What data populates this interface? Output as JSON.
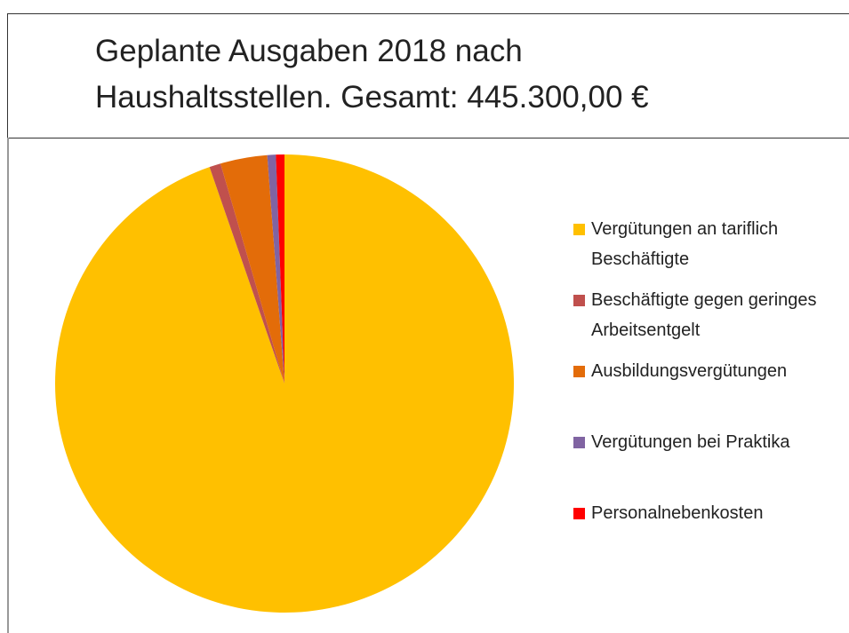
{
  "chart_data": {
    "type": "pie",
    "title": "Geplante Ausgaben 2018 nach Haushaltsstellen. Gesamt: 445.300,00 €",
    "categories": [
      "Vergütungen an tariflich Beschäftigte",
      "Beschäftigte gegen geringes Arbeitsentgelt",
      "Ausbildungsvergütungen",
      "Vergütungen bei Praktika",
      "Personalnebenkosten"
    ],
    "values": [
      94.7,
      0.8,
      3.3,
      0.6,
      0.6
    ],
    "colors": [
      "#FFC000",
      "#C0504D",
      "#E36C09",
      "#8064A2",
      "#FF0000"
    ],
    "legend": "right"
  }
}
